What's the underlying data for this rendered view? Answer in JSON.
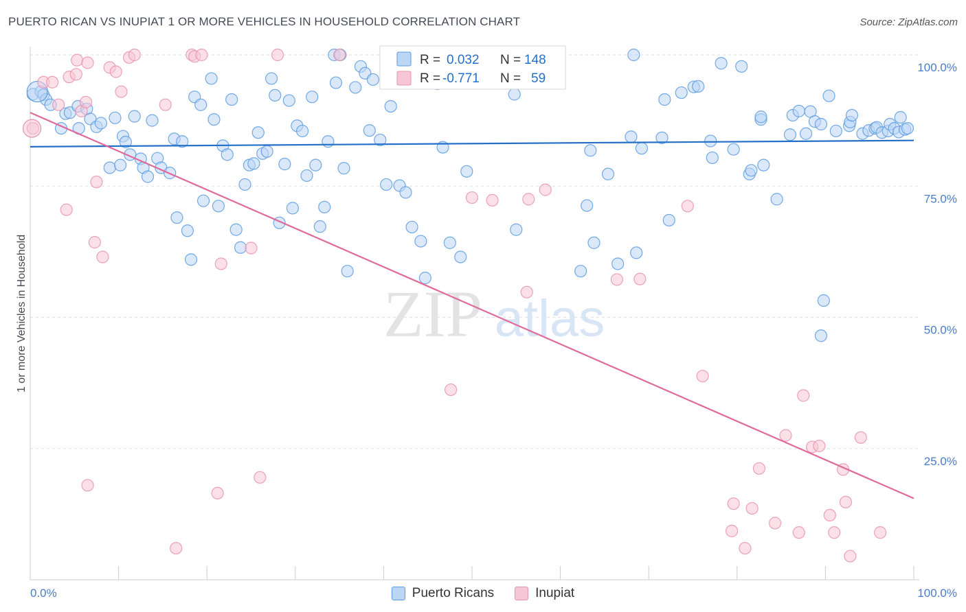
{
  "title": "PUERTO RICAN VS INUPIAT 1 OR MORE VEHICLES IN HOUSEHOLD CORRELATION CHART",
  "source": "Source: ZipAtlas.com",
  "watermark": {
    "zip": "ZIP",
    "atlas": "atlas"
  },
  "colors": {
    "blue": "#5b9be0",
    "blue_fill": "#bcd6f5",
    "blue_line": "#2470c9",
    "pink": "#e792b0",
    "pink_fill": "#f7c6d6",
    "pink_line": "#e06a99",
    "axis_text": "#4a7cc7",
    "grid": "#dcdfe6"
  },
  "legend": {
    "rows": [
      {
        "r_label": "R =",
        "r_value": "0.032",
        "n_label": "N =",
        "n_value": "148"
      },
      {
        "r_label": "R =",
        "r_value": "-0.771",
        "n_label": "N =",
        "n_value": "59"
      }
    ]
  },
  "bottom_legend": [
    "Puerto Ricans",
    "Inupiat"
  ],
  "chart_data": {
    "type": "scatter",
    "title": "PUERTO RICAN VS INUPIAT 1 OR MORE VEHICLES IN HOUSEHOLD CORRELATION CHART",
    "xlabel": "",
    "ylabel": "1 or more Vehicles in Household",
    "xlim": [
      0,
      100
    ],
    "ylim": [
      0,
      105
    ],
    "x_tick_labels": [
      "0.0%",
      "100.0%"
    ],
    "y_ticks": [
      25,
      50,
      75,
      100
    ],
    "y_tick_labels": [
      "25.0%",
      "50.0%",
      "75.0%",
      "100.0%"
    ],
    "grid": true,
    "legend_position": "top-center",
    "series": [
      {
        "name": "Puerto Ricans",
        "trend": {
          "x": [
            0,
            100
          ],
          "y": [
            82.5,
            83.7
          ]
        },
        "points": [
          [
            0.3,
            92.5
          ],
          [
            1.2,
            93
          ],
          [
            1.5,
            92.4
          ],
          [
            1.8,
            91.5
          ],
          [
            2.3,
            90.5
          ],
          [
            3.5,
            86
          ],
          [
            4,
            88.8
          ],
          [
            4.5,
            89
          ],
          [
            5.5,
            86
          ],
          [
            5.4,
            90.2
          ],
          [
            6.4,
            89.7
          ],
          [
            6.8,
            87.8
          ],
          [
            7.5,
            86.3
          ],
          [
            8,
            87
          ],
          [
            9,
            78.5
          ],
          [
            9.6,
            88
          ],
          [
            10.2,
            79
          ],
          [
            10.5,
            84.5
          ],
          [
            10.8,
            83.4
          ],
          [
            11.3,
            81
          ],
          [
            11.8,
            88.3
          ],
          [
            12.5,
            80.2
          ],
          [
            12.8,
            78.5
          ],
          [
            13.3,
            76.8
          ],
          [
            13.8,
            87.5
          ],
          [
            14.4,
            80.3
          ],
          [
            14.8,
            78.5
          ],
          [
            15.8,
            77.5
          ],
          [
            16.3,
            84
          ],
          [
            16.6,
            69
          ],
          [
            17.2,
            83.5
          ],
          [
            17.8,
            66.5
          ],
          [
            18.2,
            61
          ],
          [
            18.6,
            92
          ],
          [
            19.3,
            90.5
          ],
          [
            19.6,
            72.2
          ],
          [
            20.5,
            95.5
          ],
          [
            20.8,
            87.7
          ],
          [
            21.3,
            71.2
          ],
          [
            21.8,
            82.7
          ],
          [
            22.3,
            81
          ],
          [
            22.8,
            91.5
          ],
          [
            23.3,
            66.7
          ],
          [
            23.8,
            63.3
          ],
          [
            24.3,
            75.3
          ],
          [
            24.8,
            79
          ],
          [
            25.3,
            79.3
          ],
          [
            25.8,
            85.2
          ],
          [
            26.3,
            81.2
          ],
          [
            26.8,
            81.6
          ],
          [
            27.3,
            95.5
          ],
          [
            27.7,
            92.3
          ],
          [
            28.2,
            68
          ],
          [
            28.8,
            79.2
          ],
          [
            29.3,
            91.3
          ],
          [
            29.7,
            70.8
          ],
          [
            30.2,
            86.5
          ],
          [
            30.8,
            85.5
          ],
          [
            31.3,
            77
          ],
          [
            31.9,
            92
          ],
          [
            32.3,
            79
          ],
          [
            32.8,
            67.3
          ],
          [
            33.3,
            71
          ],
          [
            33.7,
            83.5
          ],
          [
            34.4,
            100
          ],
          [
            34.6,
            94.7
          ],
          [
            35.1,
            100
          ],
          [
            35.5,
            78.4
          ],
          [
            35.9,
            58.8
          ],
          [
            36.8,
            93.8
          ],
          [
            37.4,
            97.8
          ],
          [
            37.9,
            96.5
          ],
          [
            38.4,
            85.6
          ],
          [
            38.8,
            95.3
          ],
          [
            39.6,
            83.8
          ],
          [
            40.3,
            75.3
          ],
          [
            40.8,
            90.2
          ],
          [
            41.2,
            97.2
          ],
          [
            41.8,
            75.1
          ],
          [
            42.5,
            73.8
          ],
          [
            43.2,
            67.2
          ],
          [
            44.2,
            64.5
          ],
          [
            44.7,
            57.5
          ],
          [
            45.2,
            98.4
          ],
          [
            46.1,
            94.5
          ],
          [
            46.7,
            82.4
          ],
          [
            47.5,
            64.2
          ],
          [
            48.7,
            61.5
          ],
          [
            49.4,
            77.8
          ],
          [
            52.3,
            100
          ],
          [
            54.8,
            92.5
          ],
          [
            55,
            66.7
          ],
          [
            57.4,
            100
          ],
          [
            58.7,
            100
          ],
          [
            62.3,
            58.8
          ],
          [
            63,
            71.3
          ],
          [
            63.4,
            81.8
          ],
          [
            63.8,
            64.2
          ],
          [
            65.4,
            77.3
          ],
          [
            66.5,
            60.2
          ],
          [
            68,
            84.4
          ],
          [
            68.3,
            100
          ],
          [
            68.6,
            62.3
          ],
          [
            69.2,
            82.2
          ],
          [
            71.5,
            84.2
          ],
          [
            71.8,
            91.5
          ],
          [
            72.3,
            68.5
          ],
          [
            73.7,
            92.8
          ],
          [
            75.1,
            93.9
          ],
          [
            75.6,
            94
          ],
          [
            77,
            83.6
          ],
          [
            77.2,
            80.4
          ],
          [
            78.2,
            98.4
          ],
          [
            79.6,
            82
          ],
          [
            80.5,
            97.8
          ],
          [
            81.4,
            77.3
          ],
          [
            81.6,
            78
          ],
          [
            82.7,
            87.7
          ],
          [
            82.7,
            88.2
          ],
          [
            83,
            79
          ],
          [
            84.5,
            72.5
          ],
          [
            86,
            84.8
          ],
          [
            86.3,
            88.5
          ],
          [
            87,
            89.3
          ],
          [
            87.8,
            85
          ],
          [
            88.3,
            89.2
          ],
          [
            88.8,
            87.3
          ],
          [
            89.5,
            86.8
          ],
          [
            90.4,
            92.2
          ],
          [
            91.2,
            85.5
          ],
          [
            92.7,
            86.5
          ],
          [
            92.8,
            87.2
          ],
          [
            93,
            88.5
          ],
          [
            94.2,
            85
          ],
          [
            94.9,
            85.6
          ],
          [
            95.6,
            86
          ],
          [
            95.8,
            86.2
          ],
          [
            96.4,
            85.2
          ],
          [
            97.1,
            85.5
          ],
          [
            97.3,
            86.8
          ],
          [
            97.8,
            86
          ],
          [
            98.3,
            85.3
          ],
          [
            98.5,
            88.1
          ],
          [
            99,
            85.8
          ],
          [
            99.3,
            86
          ],
          [
            89.8,
            53.2
          ],
          [
            89.5,
            46.5
          ]
        ]
      },
      {
        "name": "Inupiat",
        "trend": {
          "x": [
            0,
            100
          ],
          "y": [
            89,
            15.5
          ]
        },
        "points": [
          [
            0.3,
            86
          ],
          [
            1.5,
            94.8
          ],
          [
            2.5,
            94.8
          ],
          [
            3.2,
            90.5
          ],
          [
            4.1,
            70.5
          ],
          [
            4.4,
            95.8
          ],
          [
            5.2,
            96.3
          ],
          [
            5.3,
            99
          ],
          [
            5.8,
            89.3
          ],
          [
            6.3,
            91
          ],
          [
            6.5,
            18
          ],
          [
            6.5,
            98.5
          ],
          [
            7.3,
            64.3
          ],
          [
            7.5,
            75.8
          ],
          [
            8.2,
            61.5
          ],
          [
            9,
            97.6
          ],
          [
            9.7,
            96.8
          ],
          [
            10.3,
            93
          ],
          [
            11.2,
            99.5
          ],
          [
            11.8,
            100
          ],
          [
            15.3,
            90.5
          ],
          [
            16.5,
            6
          ],
          [
            18.3,
            100
          ],
          [
            18.6,
            99.7
          ],
          [
            19.4,
            100
          ],
          [
            21.2,
            16.5
          ],
          [
            21.6,
            60.2
          ],
          [
            25,
            63.2
          ],
          [
            26,
            19.5
          ],
          [
            28,
            100
          ],
          [
            35,
            100
          ],
          [
            47.6,
            36.2
          ],
          [
            50,
            72.8
          ],
          [
            52.3,
            72.3
          ],
          [
            56.2,
            54.8
          ],
          [
            56.4,
            72.5
          ],
          [
            58.3,
            74.3
          ],
          [
            66.4,
            57.2
          ],
          [
            69,
            57.3
          ],
          [
            74.4,
            71.2
          ],
          [
            76.1,
            38.8
          ],
          [
            79.4,
            9.3
          ],
          [
            79.6,
            14.5
          ],
          [
            80.9,
            6
          ],
          [
            81.7,
            13.6
          ],
          [
            82.5,
            21.2
          ],
          [
            84.3,
            10.8
          ],
          [
            85.5,
            27.5
          ],
          [
            87,
            9
          ],
          [
            87.5,
            35.1
          ],
          [
            88.5,
            25.3
          ],
          [
            89.3,
            25.5
          ],
          [
            90.5,
            12.3
          ],
          [
            91,
            9
          ],
          [
            92,
            21
          ],
          [
            92.3,
            14.8
          ],
          [
            92.8,
            4.5
          ],
          [
            94,
            27.1
          ],
          [
            96.2,
            9
          ]
        ]
      }
    ]
  }
}
